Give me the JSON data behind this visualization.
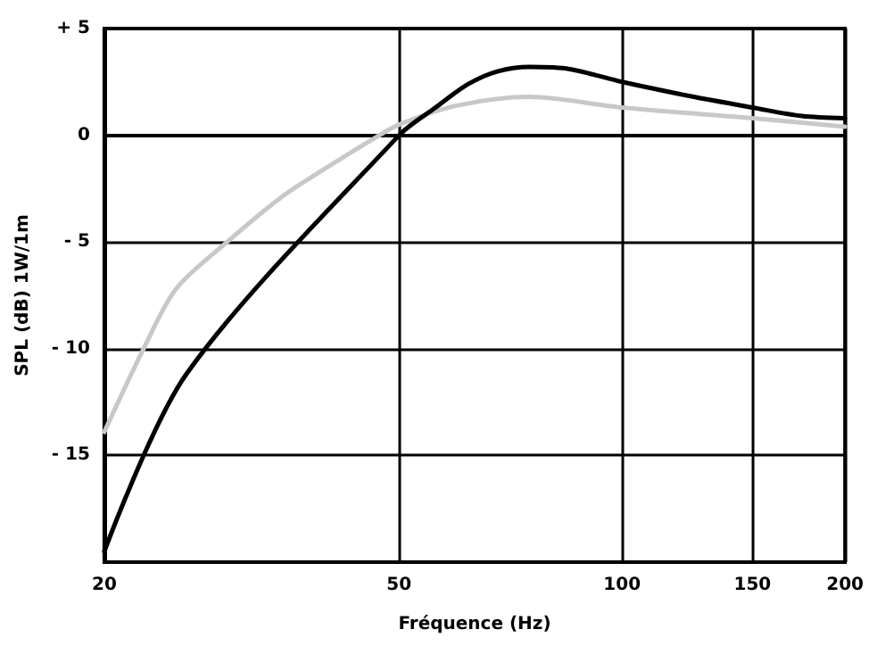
{
  "chart_data": {
    "type": "line",
    "xlabel": "Fréquence (Hz)",
    "ylabel": "SPL (dB) 1W/1m",
    "log": "x",
    "xlim": [
      20,
      200
    ],
    "xticks": [
      20,
      50,
      100,
      150,
      200
    ],
    "ylim": [
      -20,
      5
    ],
    "yticks": [
      {
        "value": 5,
        "label": "+ 5"
      },
      0,
      {
        "value": -5,
        "label": "- 5"
      },
      {
        "value": -10,
        "label": "- 10"
      },
      {
        "value": -15,
        "label": "- 15"
      }
    ],
    "grid": true,
    "marker": "none",
    "line_style": "solid",
    "series": [
      {
        "color": "#c8c8c8",
        "x": [
          20,
          22.6,
          25,
          29.3,
          35,
          40,
          46,
          50,
          60,
          75,
          100,
          150,
          200
        ],
        "values": [
          -13.9,
          -10,
          -7.2,
          -5,
          -2.8,
          -1.5,
          -0.2,
          0.5,
          1.4,
          1.8,
          1.3,
          0.8,
          0.4
        ]
      },
      {
        "color": "#000000",
        "x": [
          20,
          25.8,
          50,
          56,
          62,
          68,
          75,
          85,
          100,
          125,
          150,
          175,
          200
        ],
        "values": [
          -19.5,
          -11.2,
          0,
          1.3,
          2.4,
          3.0,
          3.2,
          3.1,
          2.5,
          1.8,
          1.3,
          0.9,
          0.8
        ]
      }
    ]
  }
}
